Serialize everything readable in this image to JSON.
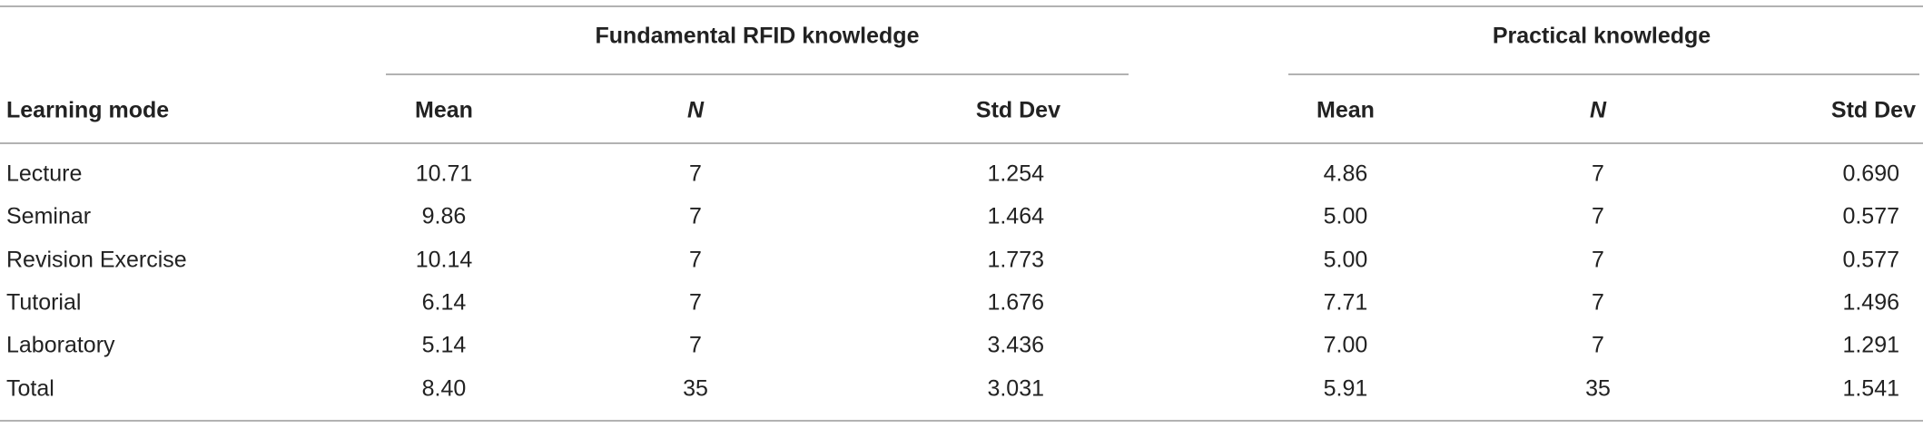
{
  "table": {
    "group_headers": [
      "Fundamental RFID knowledge",
      "Practical knowledge"
    ],
    "columns": [
      "Learning mode",
      "Mean",
      "N",
      "Std Dev",
      "Mean",
      "N",
      "Std Dev"
    ],
    "rows": [
      [
        "Lecture",
        "10.71",
        "7",
        "1.254",
        "4.86",
        "7",
        "0.690"
      ],
      [
        "Seminar",
        "9.86",
        "7",
        "1.464",
        "5.00",
        "7",
        "0.577"
      ],
      [
        "Revision Exercise",
        "10.14",
        "7",
        "1.773",
        "5.00",
        "7",
        "0.577"
      ],
      [
        "Tutorial",
        "6.14",
        "7",
        "1.676",
        "7.71",
        "7",
        "1.496"
      ],
      [
        "Laboratory",
        "5.14",
        "7",
        "3.436",
        "7.00",
        "7",
        "1.291"
      ],
      [
        "Total",
        "8.40",
        "35",
        "3.031",
        "5.91",
        "35",
        "1.541"
      ]
    ]
  }
}
